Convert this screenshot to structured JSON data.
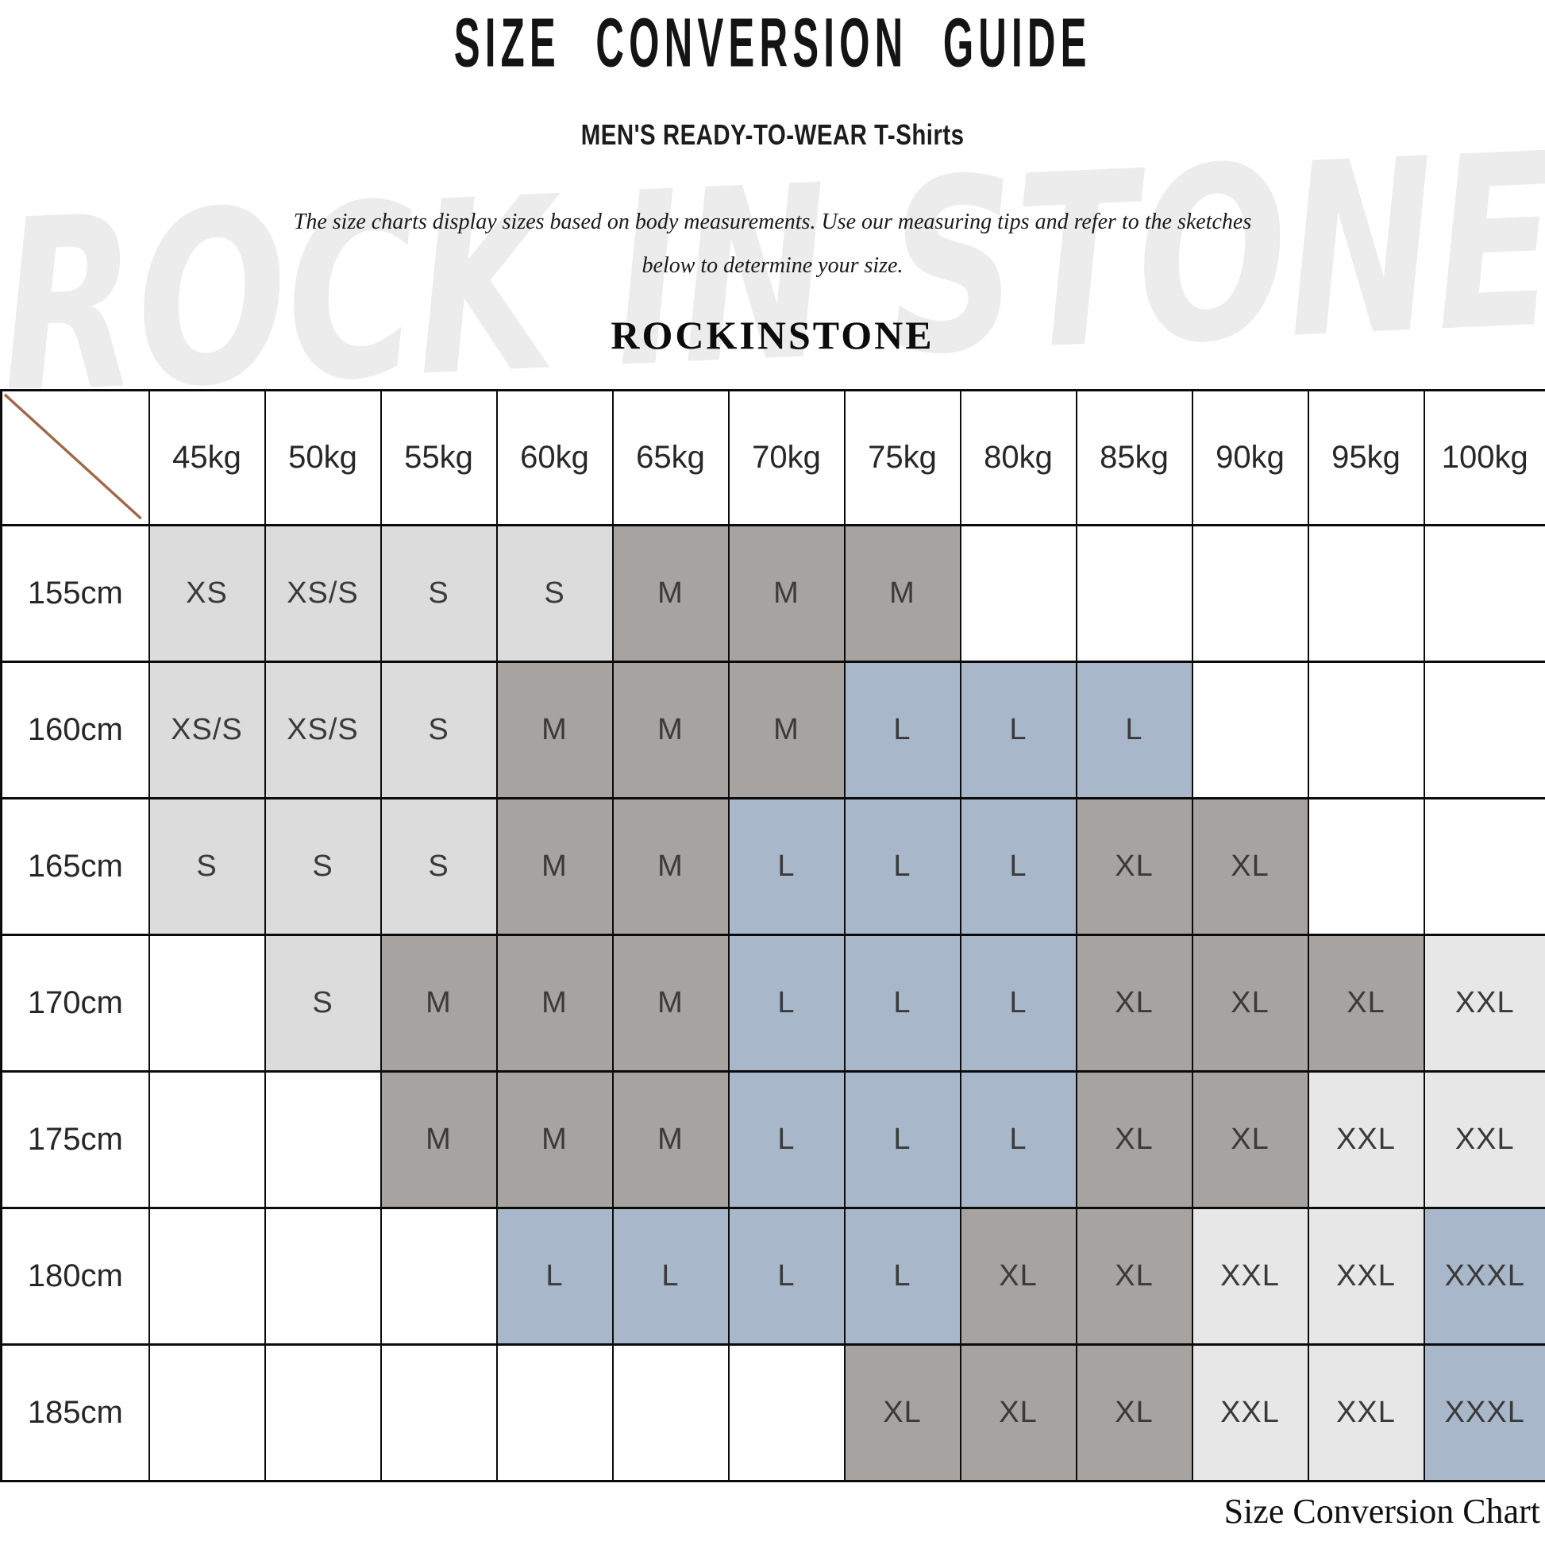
{
  "page": {
    "title": "SIZE CONVERSION GUIDE",
    "subtitle": "MEN'S READY-TO-WEAR T-Shirts",
    "description_line1": "The size charts display sizes based on body measurements. Use our measuring tips and refer to the sketches",
    "description_line2": "below to determine your size.",
    "brand": "ROCKINSTONE",
    "watermark_text": "ROCK IN STONE",
    "caption": "Size Conversion Chart"
  },
  "colors": {
    "size_small_bg": "#dcdcdc",
    "size_medium_xl_bg": "#a7a3a0",
    "size_large_xxxl_bg": "#a9b7ca",
    "size_xxl_bg": "#e7e7e7",
    "diagonal_line": "#a0684a",
    "table_border": "#0b0b0b",
    "watermark_gray": "#ececec"
  },
  "chart_data": {
    "type": "table",
    "title": "SIZE CONVERSION GUIDE",
    "columns": [
      "45kg",
      "50kg",
      "55kg",
      "60kg",
      "65kg",
      "70kg",
      "75kg",
      "80kg",
      "85kg",
      "90kg",
      "95kg",
      "100kg"
    ],
    "rows": [
      "155cm",
      "160cm",
      "165cm",
      "170cm",
      "175cm",
      "180cm",
      "185cm"
    ],
    "cells": [
      [
        "XS",
        "XS/S",
        "S",
        "S",
        "M",
        "M",
        "M",
        "",
        "",
        "",
        "",
        ""
      ],
      [
        "XS/S",
        "XS/S",
        "S",
        "M",
        "M",
        "M",
        "L",
        "L",
        "L",
        "",
        "",
        ""
      ],
      [
        "S",
        "S",
        "S",
        "M",
        "M",
        "L",
        "L",
        "L",
        "XL",
        "XL",
        "",
        ""
      ],
      [
        "",
        "S",
        "M",
        "M",
        "M",
        "L",
        "L",
        "L",
        "XL",
        "XL",
        "XL",
        "XXL"
      ],
      [
        "",
        "",
        "M",
        "M",
        "M",
        "L",
        "L",
        "L",
        "XL",
        "XL",
        "XXL",
        "XXL"
      ],
      [
        "",
        "",
        "",
        "L",
        "L",
        "L",
        "L",
        "XL",
        "XL",
        "XXL",
        "XXL",
        "XXXL"
      ],
      [
        "",
        "",
        "",
        "",
        "",
        "",
        "XL",
        "XL",
        "XL",
        "XXL",
        "XXL",
        "XXXL"
      ]
    ]
  }
}
